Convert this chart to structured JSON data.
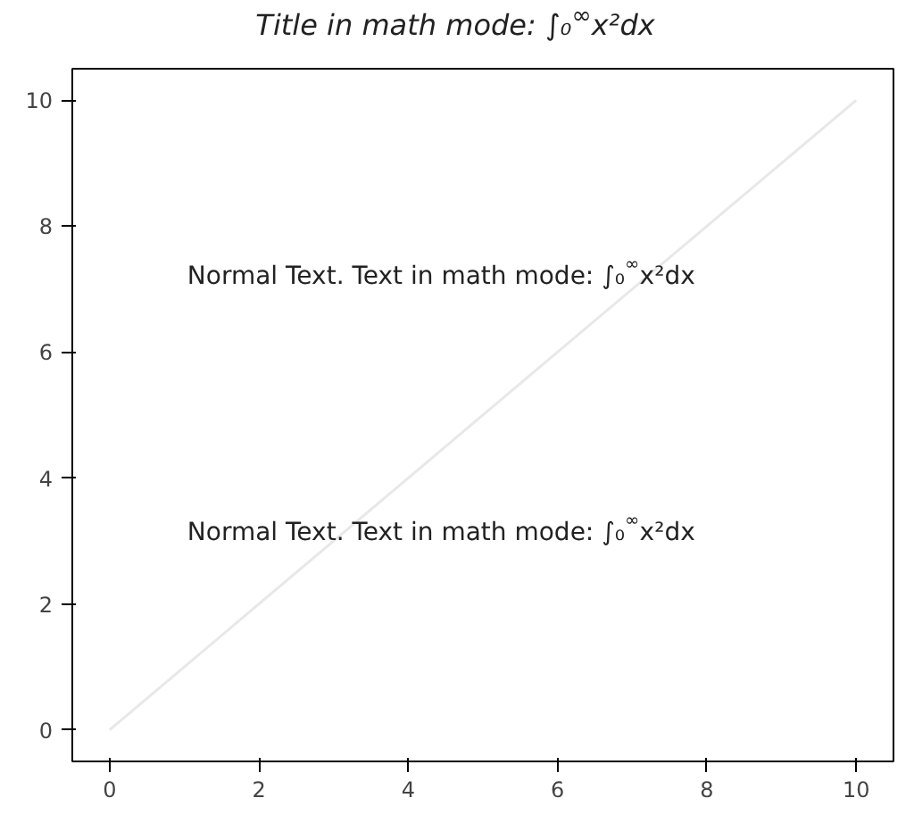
{
  "chart_data": {
    "type": "line",
    "title": "Title in math mode: ∫₀$^{∞}$x²dx",
    "x": [
      0,
      10
    ],
    "series": [
      {
        "color": "#e8e8e8",
        "values": [
          0,
          10
        ]
      }
    ],
    "xlim": [
      -0.5,
      10.5
    ],
    "ylim": [
      -0.5,
      10.5
    ],
    "xticks": [
      0,
      2,
      4,
      6,
      8,
      10
    ],
    "yticks": [
      0,
      2,
      4,
      6,
      8,
      10
    ],
    "annotations": [
      "Normal Text. Text in math mode: ∫₀$^{∞}$x²dx",
      "Normal Text. Text in math mode: ∫₀$^{∞}$x²dx"
    ]
  }
}
